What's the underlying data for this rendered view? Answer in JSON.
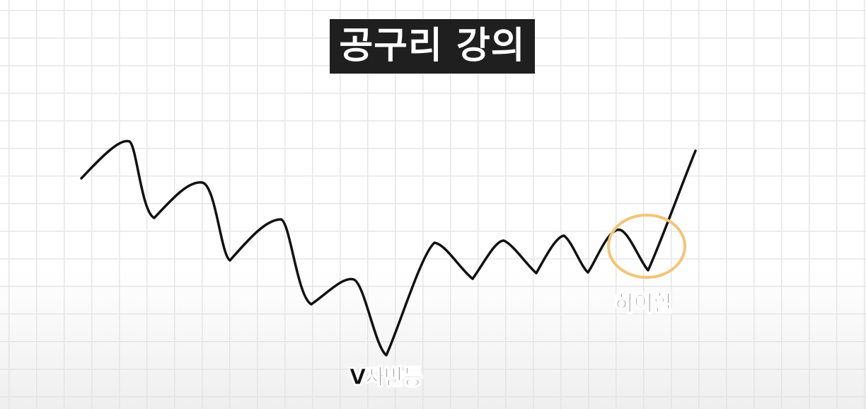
{
  "title": "공구리 강의",
  "annotations": {
    "v_rebound": "V자반등",
    "high_heel": "하이힐"
  },
  "colors": {
    "title_bg": "#1f1f1f",
    "title_text": "#ffffff",
    "line": "#111111",
    "highlight_circle": "#f2c577",
    "grid": "#e6e6e6"
  }
}
